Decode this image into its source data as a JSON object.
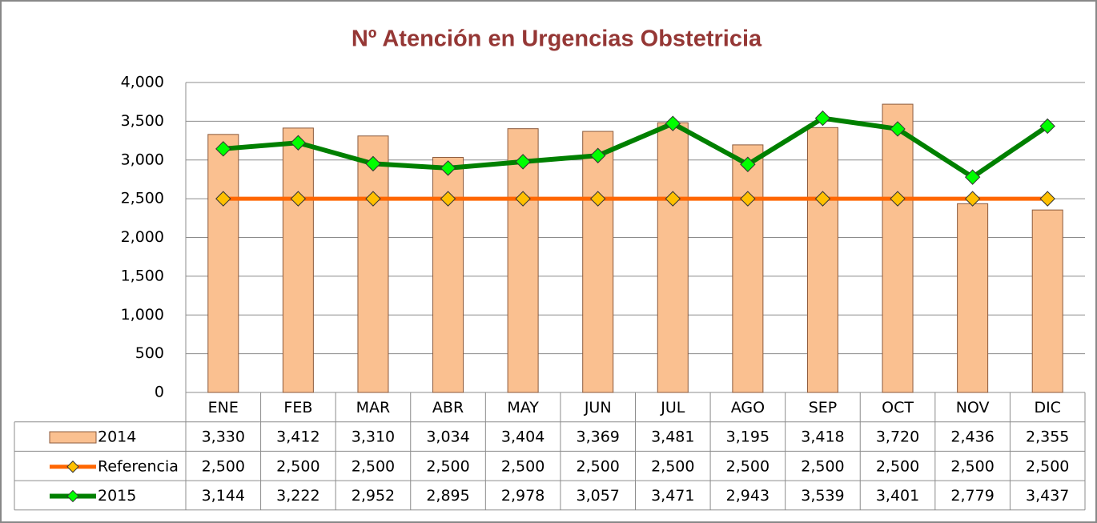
{
  "chart_data": {
    "type": "bar",
    "title": "Nº Atención en Urgencias Obstetricia",
    "categories": [
      "ENE",
      "FEB",
      "MAR",
      "ABR",
      "MAY",
      "JUN",
      "JUL",
      "AGO",
      "SEP",
      "OCT",
      "NOV",
      "DIC"
    ],
    "series": [
      {
        "name": "2014",
        "type": "bar",
        "color": "#fac090",
        "values": [
          3330,
          3412,
          3310,
          3034,
          3404,
          3369,
          3481,
          3195,
          3418,
          3720,
          2436,
          2355
        ],
        "value_labels": [
          "3,330",
          "3,412",
          "3,310",
          "3,034",
          "3,404",
          "3,369",
          "3,481",
          "3,195",
          "3,418",
          "3,720",
          "2,436",
          "2,355"
        ]
      },
      {
        "name": "Referencia",
        "type": "line",
        "color": "#ff6600",
        "marker_color": "#ffc000",
        "values": [
          2500,
          2500,
          2500,
          2500,
          2500,
          2500,
          2500,
          2500,
          2500,
          2500,
          2500,
          2500
        ],
        "value_labels": [
          "2,500",
          "2,500",
          "2,500",
          "2,500",
          "2,500",
          "2,500",
          "2,500",
          "2,500",
          "2,500",
          "2,500",
          "2,500",
          "2,500"
        ]
      },
      {
        "name": "2015",
        "type": "line",
        "color": "#008000",
        "marker_color": "#00ff00",
        "values": [
          3144,
          3222,
          2952,
          2895,
          2978,
          3057,
          3471,
          2943,
          3539,
          3401,
          2779,
          3437
        ],
        "value_labels": [
          "3,144",
          "3,222",
          "2,952",
          "2,895",
          "2,978",
          "3,057",
          "3,471",
          "2,943",
          "3,539",
          "3,401",
          "2,779",
          "3,437"
        ]
      }
    ],
    "ylim": [
      0,
      4000
    ],
    "yticks": [
      0,
      500,
      {
        "value": 1000,
        "label": "1,000"
      },
      {
        "value": 1500,
        "label": "1,500"
      },
      {
        "value": 2000,
        "label": "2,000"
      },
      {
        "value": 2500,
        "label": "2,500"
      },
      {
        "value": 3000,
        "label": "3,000"
      },
      {
        "value": 3500,
        "label": "3,500"
      },
      {
        "value": 4000,
        "label": "4,000"
      }
    ],
    "grid": true,
    "data_table": true
  }
}
